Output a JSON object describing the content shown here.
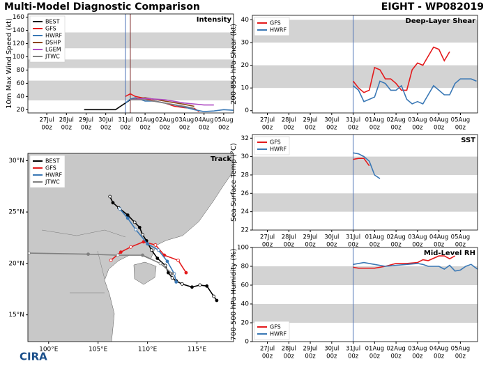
{
  "header": {
    "title": "Multi-Model Diagnostic Comparison",
    "storm": "EIGHT - WP082019",
    "logo": "CIRA"
  },
  "chart_data": [
    {
      "type": "line",
      "title": "Intensity",
      "y_label": "10m Max Wind Speed (kt)",
      "xlim": [
        26.04,
        36.5
      ],
      "ylim": [
        15,
        165
      ],
      "xticks": [
        {
          "value": 27,
          "label": "27Jul"
        },
        {
          "value": 28,
          "label": "28Jul"
        },
        {
          "value": 29,
          "label": "29Jul"
        },
        {
          "value": 30,
          "label": "30Jul"
        },
        {
          "value": 31,
          "label": "31Jul"
        },
        {
          "value": 32,
          "label": "01Aug"
        },
        {
          "value": 33,
          "label": "02Aug"
        },
        {
          "value": 34,
          "label": "03Aug"
        },
        {
          "value": 35,
          "label": "04Aug"
        },
        {
          "value": 36,
          "label": "05Aug"
        }
      ],
      "x_tick_sublabel": "00z",
      "yticks": [
        20,
        40,
        60,
        80,
        100,
        120,
        140,
        160
      ],
      "bands": [
        [
          34,
          64
        ],
        [
          83,
          96
        ],
        [
          113,
          137
        ]
      ],
      "vlines": [
        {
          "value": 31.0,
          "color": "#4a6fb5"
        },
        {
          "value": 31.25,
          "color": "#7b2a2a"
        }
      ],
      "legend": "upper left",
      "series": [
        {
          "name": "BEST",
          "color": "#000000",
          "x": [
            28.9,
            29.5,
            30,
            30.5,
            30.75,
            31,
            31.25
          ],
          "values": [
            20,
            20,
            20,
            20,
            25,
            30,
            35
          ]
        },
        {
          "name": "GFS",
          "color": "#e41a1c",
          "x": [
            31,
            31.25,
            31.5,
            32,
            32.5,
            33,
            33.5,
            34,
            34.5,
            34.75
          ],
          "values": [
            40,
            44,
            40,
            37,
            33,
            30,
            25,
            23,
            22,
            17
          ]
        },
        {
          "name": "HWRF",
          "color": "#3a78b5",
          "x": [
            31,
            31.25,
            31.5,
            32,
            32.5,
            33,
            33.5,
            34,
            34.5,
            35,
            35.5,
            36,
            36.5
          ],
          "values": [
            30,
            36,
            38,
            33,
            33,
            30,
            27,
            24,
            20,
            17,
            18,
            20,
            19
          ]
        },
        {
          "name": "DSHP",
          "color": "#8b4513",
          "x": [
            31.25,
            32,
            33,
            34,
            34.5
          ],
          "values": [
            35,
            38,
            33,
            28,
            25
          ]
        },
        {
          "name": "LGEM",
          "color": "#b04fc4",
          "x": [
            31.25,
            32,
            33,
            34,
            35,
            35.5
          ],
          "values": [
            35,
            37,
            35,
            30,
            27,
            27
          ]
        },
        {
          "name": "JTWC",
          "color": "#808080",
          "x": [
            31.25,
            32,
            33,
            34,
            34.5
          ],
          "values": [
            35,
            35,
            30,
            25,
            22
          ]
        }
      ]
    },
    {
      "type": "line",
      "title": "Deep-Layer Shear",
      "y_label": "200-850 hPa Shear (kt)",
      "xlim": [
        26.3,
        36.8
      ],
      "ylim": [
        -1,
        42
      ],
      "xticks": [
        {
          "value": 27,
          "label": "27Jul"
        },
        {
          "value": 28,
          "label": "28Jul"
        },
        {
          "value": 29,
          "label": "29Jul"
        },
        {
          "value": 30,
          "label": "30Jul"
        },
        {
          "value": 31,
          "label": "31Jul"
        },
        {
          "value": 32,
          "label": "01Aug"
        },
        {
          "value": 33,
          "label": "02Aug"
        },
        {
          "value": 34,
          "label": "03Aug"
        },
        {
          "value": 35,
          "label": "04Aug"
        },
        {
          "value": 36,
          "label": "05Aug"
        }
      ],
      "x_tick_sublabel": "00z",
      "yticks": [
        0,
        10,
        20,
        30,
        40
      ],
      "bands": [
        [
          10,
          20
        ],
        [
          30,
          40
        ]
      ],
      "vlines": [
        {
          "value": 31.0,
          "color": "#4a6fb5"
        }
      ],
      "legend": "upper left",
      "series": [
        {
          "name": "GFS",
          "color": "#e41a1c",
          "x": [
            31,
            31.25,
            31.5,
            31.75,
            32,
            32.25,
            32.5,
            32.75,
            33,
            33.25,
            33.5,
            33.75,
            34,
            34.25,
            34.5,
            34.75,
            35,
            35.25,
            35.5
          ],
          "values": [
            13,
            10,
            8,
            9,
            19,
            18,
            14,
            14,
            12,
            9,
            9,
            18,
            21,
            20,
            24,
            28,
            27,
            22,
            26
          ]
        },
        {
          "name": "HWRF",
          "color": "#3a78b5",
          "x": [
            31,
            31.25,
            31.5,
            31.75,
            32,
            32.25,
            32.5,
            32.75,
            33,
            33.25,
            33.5,
            33.75,
            34,
            34.25,
            34.5,
            34.75,
            35,
            35.25,
            35.5,
            35.75,
            36,
            36.5,
            36.75
          ],
          "values": [
            11,
            9,
            4,
            5,
            6,
            13,
            12,
            9,
            9,
            11,
            5,
            3,
            4,
            3,
            7,
            11,
            9,
            7,
            7,
            12,
            14,
            14,
            13
          ]
        }
      ]
    },
    {
      "type": "line",
      "title": "SST",
      "y_label": "Sea Surface Temp (°C)",
      "xlim": [
        26.3,
        36.8
      ],
      "ylim": [
        22,
        32.4
      ],
      "xticks": [
        {
          "value": 27,
          "label": "27Jul"
        },
        {
          "value": 28,
          "label": "28Jul"
        },
        {
          "value": 29,
          "label": "29Jul"
        },
        {
          "value": 30,
          "label": "30Jul"
        },
        {
          "value": 31,
          "label": "31Jul"
        },
        {
          "value": 32,
          "label": "01Aug"
        },
        {
          "value": 33,
          "label": "02Aug"
        },
        {
          "value": 34,
          "label": "03Aug"
        },
        {
          "value": 35,
          "label": "04Aug"
        },
        {
          "value": 36,
          "label": "05Aug"
        }
      ],
      "x_tick_sublabel": "00z",
      "yticks": [
        22,
        24,
        26,
        28,
        30,
        32
      ],
      "bands": [
        [
          24,
          26
        ],
        [
          28,
          30
        ]
      ],
      "vlines": [
        {
          "value": 31.0,
          "color": "#4a6fb5"
        }
      ],
      "legend": "upper left",
      "series": [
        {
          "name": "GFS",
          "color": "#e41a1c",
          "x": [
            31,
            31.25,
            31.5,
            31.75
          ],
          "values": [
            29.7,
            29.8,
            29.8,
            29.0
          ]
        },
        {
          "name": "HWRF",
          "color": "#3a78b5",
          "x": [
            31,
            31.25,
            31.5,
            31.75,
            32,
            32.25
          ],
          "values": [
            30.4,
            30.3,
            30.0,
            29.5,
            28.0,
            27.6
          ]
        }
      ]
    },
    {
      "type": "line",
      "title": "Mid-Level RH",
      "y_label": "700-500 hPa Humidity (%)",
      "xlim": [
        26.3,
        36.8
      ],
      "ylim": [
        0,
        100
      ],
      "xticks": [
        {
          "value": 27,
          "label": "27Jul"
        },
        {
          "value": 28,
          "label": "28Jul"
        },
        {
          "value": 29,
          "label": "29Jul"
        },
        {
          "value": 30,
          "label": "30Jul"
        },
        {
          "value": 31,
          "label": "31Jul"
        },
        {
          "value": 32,
          "label": "01Aug"
        },
        {
          "value": 33,
          "label": "02Aug"
        },
        {
          "value": 34,
          "label": "03Aug"
        },
        {
          "value": 35,
          "label": "04Aug"
        },
        {
          "value": 36,
          "label": "05Aug"
        }
      ],
      "x_tick_sublabel": "00z",
      "yticks": [
        0,
        20,
        40,
        60,
        80,
        100
      ],
      "bands": [
        [
          20,
          40
        ],
        [
          60,
          80
        ]
      ],
      "vlines": [
        {
          "value": 31.0,
          "color": "#4a6fb5"
        }
      ],
      "legend": "lower left",
      "series": [
        {
          "name": "GFS",
          "color": "#e41a1c",
          "x": [
            31,
            31.25,
            32,
            32.5,
            33,
            33.5,
            34,
            34.25,
            34.5,
            35,
            35.25,
            35.5,
            35.75
          ],
          "values": [
            79,
            78,
            78,
            80,
            83,
            83,
            84,
            87,
            86,
            91,
            91,
            88,
            91
          ]
        },
        {
          "name": "HWRF",
          "color": "#3a78b5",
          "x": [
            31,
            31.5,
            32,
            32.5,
            33,
            33.5,
            34,
            34.25,
            34.5,
            35,
            35.25,
            35.5,
            35.75,
            36,
            36.25,
            36.5,
            36.8
          ],
          "values": [
            82,
            84,
            82,
            80,
            81,
            82,
            83,
            82,
            80,
            80,
            77,
            81,
            75,
            76,
            80,
            82,
            77
          ]
        }
      ]
    },
    {
      "type": "track",
      "title": "Track",
      "xlim": [
        97.9,
        118.7
      ],
      "ylim": [
        12.4,
        30.7
      ],
      "xticks": [
        {
          "value": 100,
          "label": "100°E"
        },
        {
          "value": 105,
          "label": "105°E"
        },
        {
          "value": 110,
          "label": "110°E"
        },
        {
          "value": 115,
          "label": "115°E"
        }
      ],
      "yticks": [
        {
          "value": 15,
          "label": "15°N"
        },
        {
          "value": 20,
          "label": "20°N"
        },
        {
          "value": 25,
          "label": "25°N"
        },
        {
          "value": 30,
          "label": "30°N"
        }
      ],
      "legend": "upper left",
      "series": [
        {
          "name": "BEST",
          "color": "#000000",
          "x": [
            117.0,
            116.7,
            116.0,
            115.3,
            114.5,
            113.5,
            112.9,
            112.5,
            112.1,
            111.8,
            111.0,
            110.4,
            109.9,
            109.5,
            109.2,
            108.7,
            108.0,
            107.1,
            106.5,
            106.2
          ],
          "values": [
            16.4,
            16.8,
            17.8,
            17.9,
            17.7,
            18.0,
            18.3,
            18.6,
            19.1,
            19.8,
            20.5,
            21.3,
            22.2,
            22.8,
            23.5,
            24.0,
            24.7,
            25.4,
            25.9,
            26.5
          ]
        },
        {
          "name": "GFS",
          "color": "#e41a1c",
          "x": [
            113.9,
            113.1,
            111.7,
            110.8,
            109.6,
            108.3,
            107.3,
            106.3
          ],
          "values": [
            19.1,
            20.3,
            20.8,
            21.8,
            22.1,
            21.6,
            21.1,
            20.3
          ]
        },
        {
          "name": "HWRF",
          "color": "#3a78b5",
          "x": [
            112.9,
            112.7,
            112.0,
            111.1,
            110.0,
            108.8,
            108.0,
            107.2
          ],
          "values": [
            18.2,
            19.0,
            20.2,
            21.3,
            21.9,
            23.3,
            24.4,
            25.3
          ]
        },
        {
          "name": "JTWC",
          "color": "#808080",
          "x": [
            112.5,
            111.3,
            109.5,
            107.0,
            104.0,
            98.0
          ],
          "values": [
            19.0,
            20.0,
            20.8,
            20.8,
            20.9,
            21.0
          ]
        }
      ]
    }
  ]
}
